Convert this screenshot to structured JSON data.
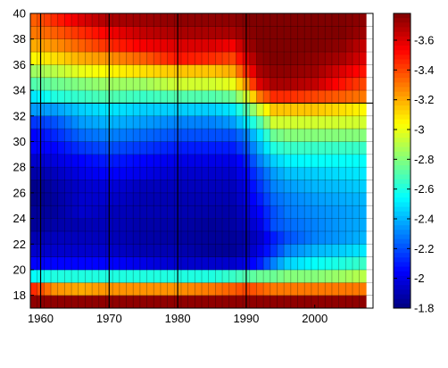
{
  "chart_data": {
    "type": "heatmap",
    "title": "",
    "xlabel": "",
    "ylabel": "",
    "x_range": [
      1959,
      2008
    ],
    "y_range": [
      17,
      40
    ],
    "x_ticks": [
      1960,
      1970,
      1980,
      1990,
      2000
    ],
    "y_ticks": [
      18,
      20,
      22,
      24,
      26,
      28,
      30,
      32,
      34,
      36,
      38,
      40
    ],
    "colorbar": {
      "colormap": "jet",
      "range": [
        -3.78,
        -1.8
      ],
      "ticks": [
        -1.8,
        -2,
        -2.2,
        -2.4,
        -2.6,
        -2.8,
        -3,
        -3.2,
        -3.4,
        -3.6
      ]
    },
    "grid": true,
    "grid_major_lines": {
      "x": [
        1960,
        1970,
        1980,
        1990
      ],
      "y": [
        33
      ]
    },
    "years": [
      1959,
      1960,
      1961,
      1962,
      1963,
      1964,
      1965,
      1966,
      1967,
      1968,
      1969,
      1970,
      1971,
      1972,
      1973,
      1974,
      1975,
      1976,
      1977,
      1978,
      1979,
      1980,
      1981,
      1982,
      1983,
      1984,
      1985,
      1986,
      1987,
      1988,
      1989,
      1990,
      1991,
      1992,
      1993,
      1994,
      1995,
      1996,
      1997,
      1998,
      1999,
      2000,
      2001,
      2002,
      2003,
      2004,
      2005,
      2006,
      2007
    ],
    "ages": [
      17,
      18,
      19,
      20,
      21,
      22,
      23,
      24,
      25,
      26,
      27,
      28,
      29,
      30,
      31,
      32,
      33,
      34,
      35,
      36,
      37,
      38,
      39
    ],
    "pivots": {
      "cols": [
        1959,
        1962,
        1966,
        1970,
        1975,
        1980,
        1985,
        1988,
        1990,
        1992,
        1994,
        1996,
        2000,
        2004,
        2007
      ],
      "rows": {
        "17": [
          -3.75,
          -3.75,
          -3.75,
          -3.75,
          -3.75,
          -3.75,
          -3.75,
          -3.75,
          -3.75,
          -3.75,
          -3.75,
          -3.75,
          -3.75,
          -3.75,
          -3.75
        ],
        "18": [
          -3.45,
          -3.25,
          -3.2,
          -3.25,
          -3.25,
          -3.25,
          -3.3,
          -3.35,
          -3.4,
          -3.35,
          -3.3,
          -3.3,
          -3.3,
          -3.3,
          -3.3
        ],
        "19": [
          -2.55,
          -2.6,
          -2.6,
          -2.6,
          -2.6,
          -2.6,
          -2.6,
          -2.65,
          -2.7,
          -2.75,
          -2.75,
          -2.8,
          -2.8,
          -2.85,
          -2.9
        ],
        "20": [
          -2.05,
          -2.05,
          -2.05,
          -2.05,
          -2.0,
          -1.95,
          -1.95,
          -1.95,
          -2.0,
          -2.1,
          -2.3,
          -2.45,
          -2.55,
          -2.6,
          -2.65
        ],
        "21": [
          -1.95,
          -1.95,
          -1.95,
          -1.95,
          -1.9,
          -1.9,
          -1.85,
          -1.85,
          -1.9,
          -2.0,
          -2.15,
          -2.3,
          -2.4,
          -2.45,
          -2.5
        ],
        "22": [
          -1.9,
          -1.92,
          -1.92,
          -1.92,
          -1.88,
          -1.87,
          -1.85,
          -1.85,
          -1.88,
          -1.95,
          -2.1,
          -2.2,
          -2.3,
          -2.35,
          -2.4
        ],
        "23": [
          -1.85,
          -1.88,
          -1.9,
          -1.92,
          -1.88,
          -1.88,
          -1.85,
          -1.87,
          -1.92,
          -2.0,
          -2.2,
          -2.25,
          -2.3,
          -2.35,
          -2.38
        ],
        "24": [
          -1.85,
          -1.86,
          -1.95,
          -1.92,
          -1.9,
          -1.9,
          -1.88,
          -1.88,
          -1.95,
          -2.05,
          -2.2,
          -2.28,
          -2.32,
          -2.35,
          -2.38
        ],
        "25": [
          -1.82,
          -1.86,
          -1.95,
          -1.95,
          -1.9,
          -1.9,
          -1.9,
          -1.9,
          -1.98,
          -2.1,
          -2.25,
          -2.3,
          -2.35,
          -2.38,
          -2.4
        ],
        "26": [
          -1.82,
          -1.88,
          -1.95,
          -1.98,
          -1.92,
          -1.92,
          -1.92,
          -1.92,
          -2.0,
          -2.15,
          -2.3,
          -2.35,
          -2.4,
          -2.42,
          -2.45
        ],
        "27": [
          -1.88,
          -1.92,
          -2.0,
          -2.05,
          -2.0,
          -1.95,
          -1.95,
          -1.95,
          -2.05,
          -2.2,
          -2.35,
          -2.42,
          -2.45,
          -2.48,
          -2.5
        ],
        "28": [
          -1.95,
          -1.98,
          -2.05,
          -2.1,
          -2.05,
          -2.0,
          -2.0,
          -2.0,
          -2.1,
          -2.3,
          -2.45,
          -2.52,
          -2.55,
          -2.55,
          -2.55
        ],
        "29": [
          -2.05,
          -2.05,
          -2.15,
          -2.2,
          -2.15,
          -2.1,
          -2.1,
          -2.1,
          -2.2,
          -2.4,
          -2.6,
          -2.65,
          -2.65,
          -2.65,
          -2.65
        ],
        "30": [
          -2.05,
          -2.12,
          -2.25,
          -2.3,
          -2.25,
          -2.2,
          -2.2,
          -2.2,
          -2.3,
          -2.5,
          -2.75,
          -2.8,
          -2.8,
          -2.8,
          -2.8
        ],
        "31": [
          -2.15,
          -2.2,
          -2.35,
          -2.4,
          -2.35,
          -2.3,
          -2.3,
          -2.35,
          -2.5,
          -2.7,
          -2.95,
          -2.95,
          -2.95,
          -2.95,
          -2.95
        ],
        "32": [
          -2.35,
          -2.35,
          -2.45,
          -2.5,
          -2.45,
          -2.45,
          -2.45,
          -2.5,
          -2.7,
          -2.95,
          -3.15,
          -3.15,
          -3.15,
          -3.1,
          -3.05
        ],
        "33": [
          -2.5,
          -2.6,
          -2.65,
          -2.7,
          -2.65,
          -2.7,
          -2.7,
          -2.75,
          -2.95,
          -3.3,
          -3.45,
          -3.45,
          -3.4,
          -3.35,
          -3.3
        ],
        "34": [
          -2.7,
          -2.75,
          -2.8,
          -2.85,
          -2.85,
          -2.95,
          -2.95,
          -3.0,
          -3.25,
          -3.6,
          -3.7,
          -3.7,
          -3.65,
          -3.5,
          -3.4
        ],
        "35": [
          -2.85,
          -2.9,
          -3.0,
          -3.05,
          -3.1,
          -3.15,
          -3.15,
          -3.2,
          -3.45,
          -3.7,
          -3.75,
          -3.75,
          -3.72,
          -3.6,
          -3.5
        ],
        "36": [
          -3.05,
          -3.1,
          -3.2,
          -3.25,
          -3.35,
          -3.5,
          -3.45,
          -3.4,
          -3.6,
          -3.75,
          -3.78,
          -3.78,
          -3.75,
          -3.7,
          -3.6
        ],
        "37": [
          -3.2,
          -3.25,
          -3.35,
          -3.45,
          -3.55,
          -3.6,
          -3.6,
          -3.55,
          -3.7,
          -3.78,
          -3.78,
          -3.78,
          -3.78,
          -3.75,
          -3.65
        ],
        "38": [
          -3.3,
          -3.35,
          -3.45,
          -3.55,
          -3.65,
          -3.7,
          -3.7,
          -3.7,
          -3.75,
          -3.78,
          -3.78,
          -3.78,
          -3.78,
          -3.78,
          -3.72
        ],
        "39": [
          -3.35,
          -3.45,
          -3.6,
          -3.7,
          -3.72,
          -3.75,
          -3.75,
          -3.75,
          -3.78,
          -3.78,
          -3.78,
          -3.78,
          -3.78,
          -3.78,
          -3.75
        ]
      }
    }
  }
}
